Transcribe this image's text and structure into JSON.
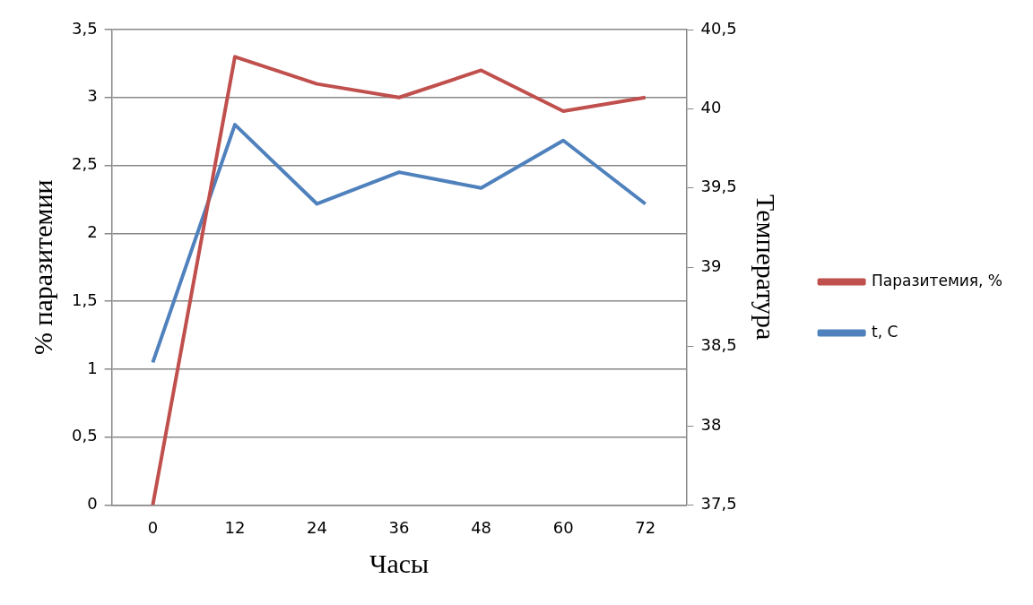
{
  "chart_data": {
    "type": "line",
    "xlabel": "Часы",
    "ylabel": "% паразитемии",
    "y2label": "Температура",
    "categories": [
      "0",
      "12",
      "24",
      "36",
      "48",
      "60",
      "72"
    ],
    "series": [
      {
        "name": "Паразитемия, %",
        "color": "#c0504d",
        "values": [
          0,
          3.3,
          3.1,
          3.0,
          3.2,
          2.9,
          3.0
        ]
      },
      {
        "name": "t, C",
        "color": "#4f81bd",
        "axis": "y2",
        "values": [
          38.4,
          39.9,
          39.4,
          39.6,
          39.5,
          39.8,
          39.4
        ]
      }
    ],
    "ylim": [
      0,
      3.5
    ],
    "yticks": [
      0,
      {
        "value": 0.5,
        "label": "0,5"
      },
      1,
      {
        "value": 1.5,
        "label": "1,5"
      },
      2,
      {
        "value": 2.5,
        "label": "2,5"
      },
      3,
      {
        "value": 3.5,
        "label": "3,5"
      }
    ],
    "y2lim": [
      37.5,
      40.5
    ],
    "y2ticks": [
      {
        "value": 37.5,
        "label": "37,5"
      },
      38,
      {
        "value": 38.5,
        "label": "38,5"
      },
      39,
      {
        "value": 39.5,
        "label": "39,5"
      },
      40,
      {
        "value": 40.5,
        "label": "40,5"
      }
    ],
    "grid": "y",
    "legend": "right",
    "marker": "none",
    "line_style": "solid"
  }
}
